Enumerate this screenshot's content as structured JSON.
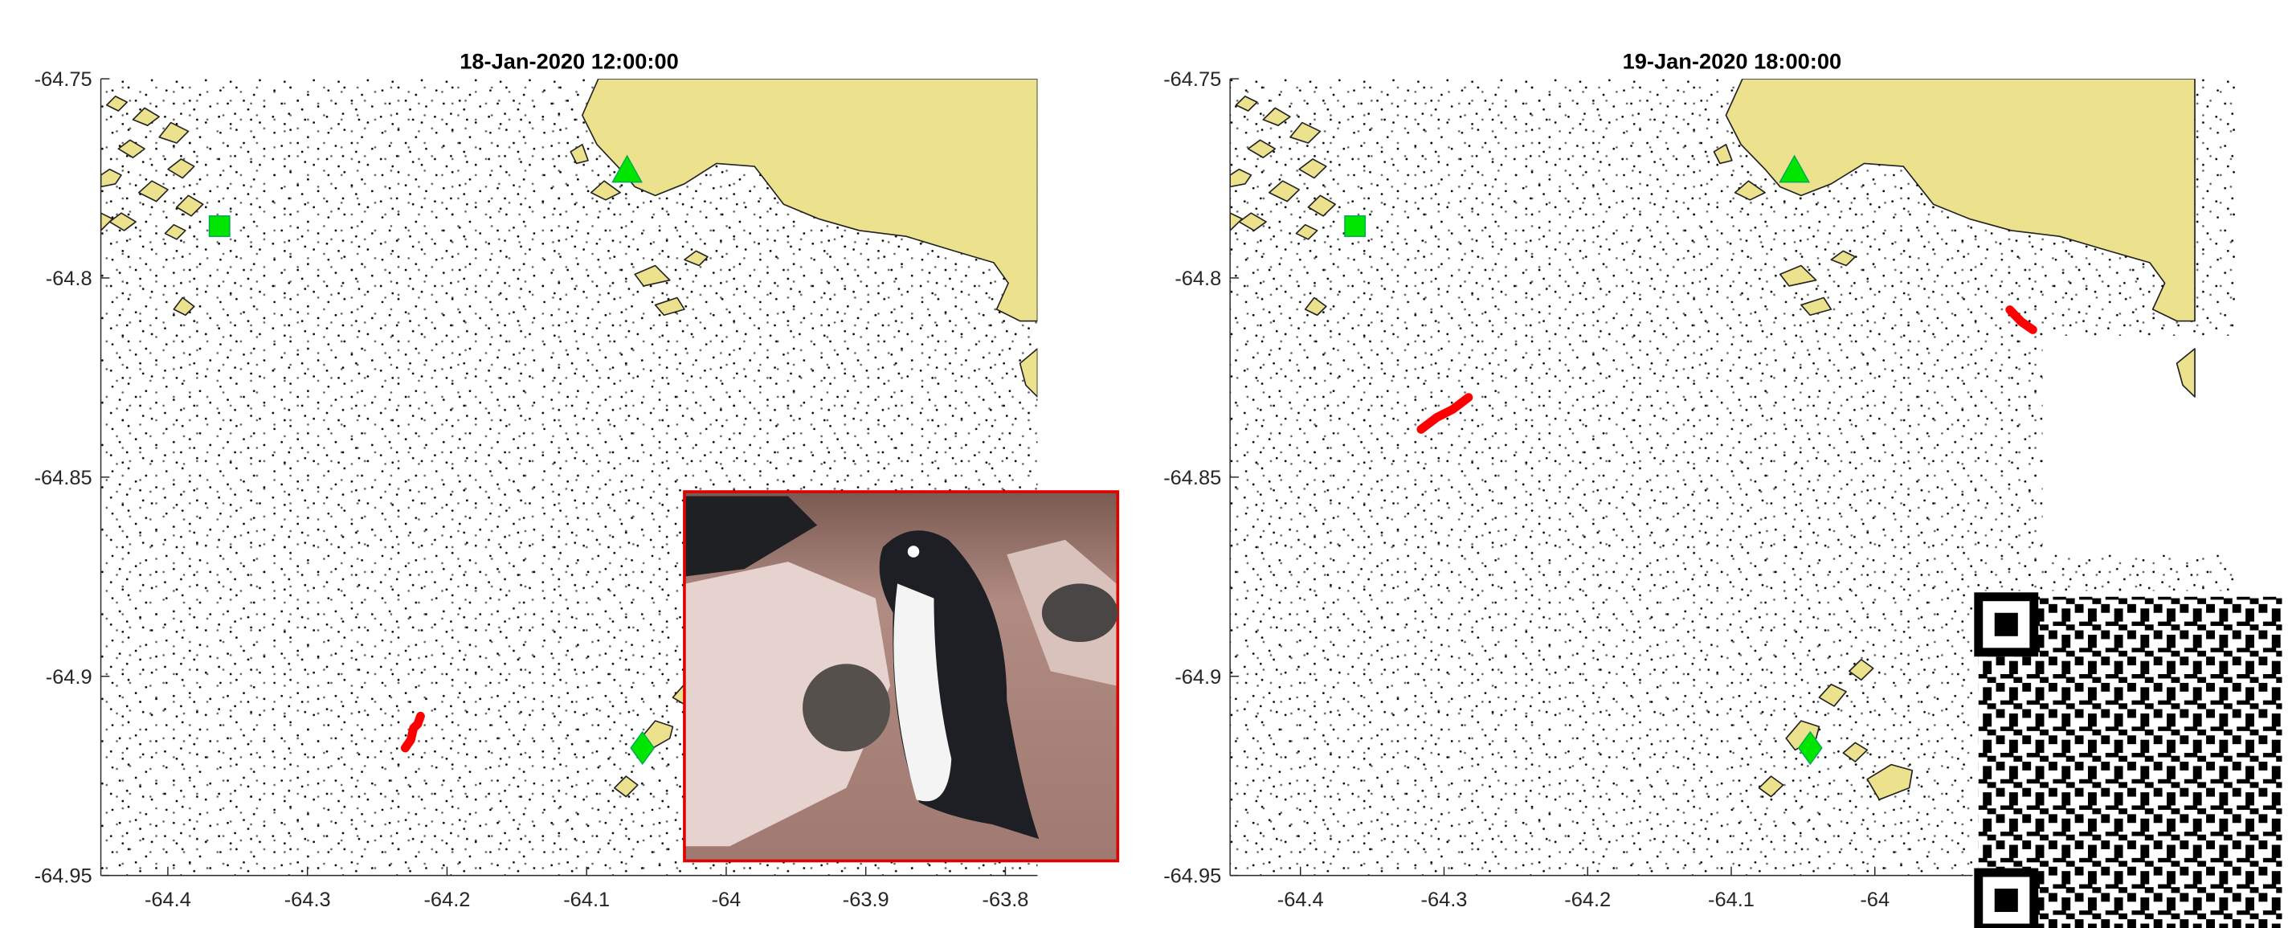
{
  "chart_data": [
    {
      "type": "scatter",
      "title": "18-Jan-2020 12:00:00",
      "xlim": [
        -64.448,
        -63.777
      ],
      "ylim": [
        -64.95,
        -64.75
      ],
      "xticks": [
        -64.4,
        -64.3,
        -64.2,
        -64.1,
        -64,
        -63.9,
        -63.8
      ],
      "yticks": [
        -64.75,
        -64.8,
        -64.85,
        -64.9,
        -64.95
      ],
      "series": [
        {
          "marker": "square",
          "color": "#00e600",
          "x": [
            -64.363
          ],
          "y": [
            -64.787
          ]
        },
        {
          "marker": "triangle",
          "color": "#00e600",
          "x": [
            -64.071
          ],
          "y": [
            -64.773
          ]
        },
        {
          "marker": "diamond",
          "color": "#00e600",
          "x": [
            -64.06
          ],
          "y": [
            -64.918
          ]
        },
        {
          "marker": "track",
          "color": "#ff0000",
          "x": [
            -64.23,
            -64.226,
            -64.224,
            -64.221,
            -64.219
          ],
          "y": [
            -64.918,
            -64.916,
            -64.913,
            -64.912,
            -64.91
          ]
        }
      ]
    },
    {
      "type": "scatter",
      "title": "19-Jan-2020 18:00:00",
      "xlim": [
        -64.449,
        -63.749
      ],
      "ylim": [
        -64.95,
        -64.75
      ],
      "xticks": [
        -64.4,
        -64.3,
        -64.2,
        -64.1,
        -64
      ],
      "yticks": [
        -64.75,
        -64.8,
        -64.85,
        -64.9,
        -64.95
      ],
      "series": [
        {
          "marker": "square",
          "color": "#00e600",
          "x": [
            -64.362
          ],
          "y": [
            -64.787
          ]
        },
        {
          "marker": "triangle",
          "color": "#00e600",
          "x": [
            -64.056
          ],
          "y": [
            -64.773
          ]
        },
        {
          "marker": "diamond",
          "color": "#00e600",
          "x": [
            -64.045
          ],
          "y": [
            -64.918
          ]
        },
        {
          "marker": "track",
          "color": "#ff0000",
          "x": [
            -64.316,
            -64.305,
            -64.294,
            -64.283
          ],
          "y": [
            -64.838,
            -64.835,
            -64.833,
            -64.83
          ]
        },
        {
          "marker": "track",
          "color": "#ff0000",
          "x": [
            -63.906,
            -63.898,
            -63.89
          ],
          "y": [
            -64.808,
            -64.811,
            -64.813
          ]
        }
      ]
    }
  ]
}
